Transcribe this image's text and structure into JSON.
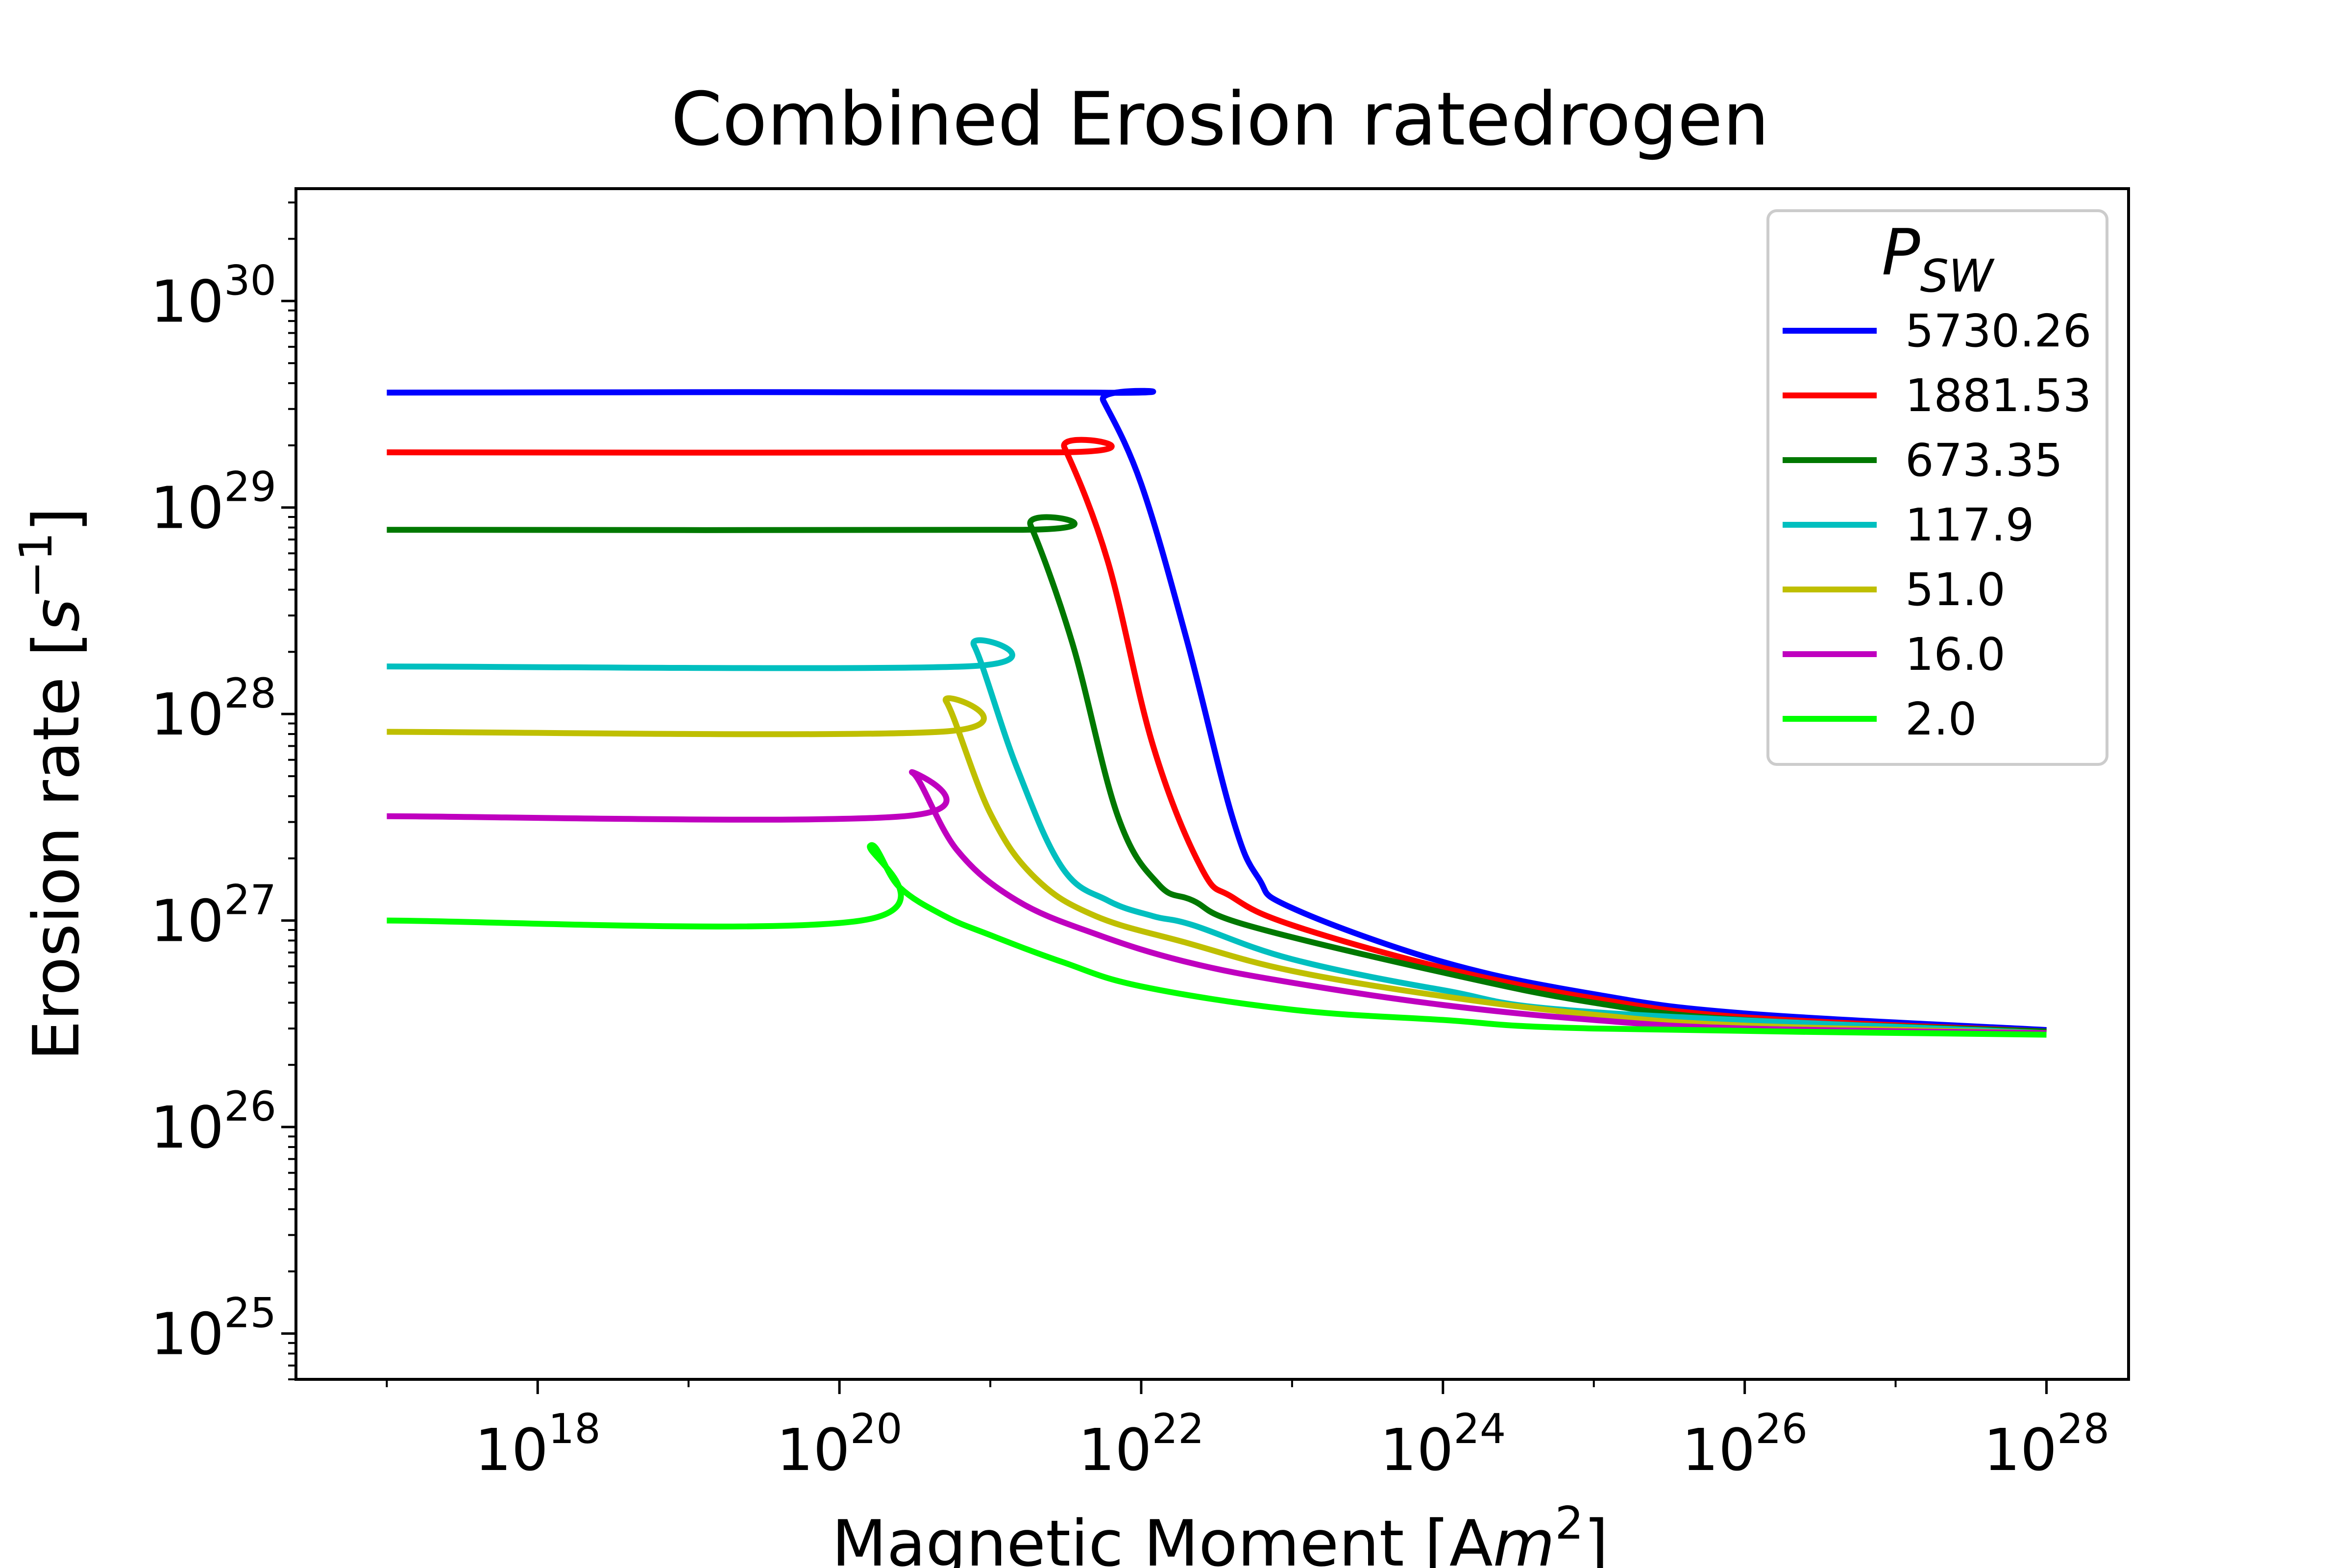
{
  "chart_data": {
    "type": "line",
    "title": "Combined Erosion ratedrogen",
    "xlabel": "Magnetic Moment [A",
    "xlabel_m": "m",
    "xlabel_exp": "2",
    "xlabel_end": "]",
    "ylabel": "Erosion rate [",
    "ylabel_s": "s",
    "ylabel_exp": "−1",
    "ylabel_end": "]",
    "xscale": "log",
    "yscale": "log",
    "xlim": [
      2.5e+16,
      3.5e+28
    ],
    "ylim": [
      6e+24,
      3.5e+30
    ],
    "x_ticks": [
      {
        "base": "10",
        "exp": "18",
        "value": 1e+18
      },
      {
        "base": "10",
        "exp": "20",
        "value": 1e+20
      },
      {
        "base": "10",
        "exp": "22",
        "value": 1e+22
      },
      {
        "base": "10",
        "exp": "24",
        "value": 1e+24
      },
      {
        "base": "10",
        "exp": "26",
        "value": 1e+26
      },
      {
        "base": "10",
        "exp": "28",
        "value": 1e+28
      }
    ],
    "y_ticks": [
      {
        "base": "10",
        "exp": "25",
        "value": 1e+25
      },
      {
        "base": "10",
        "exp": "26",
        "value": 1e+26
      },
      {
        "base": "10",
        "exp": "27",
        "value": 1e+27
      },
      {
        "base": "10",
        "exp": "28",
        "value": 1e+28
      },
      {
        "base": "10",
        "exp": "29",
        "value": 1e+29
      },
      {
        "base": "10",
        "exp": "30",
        "value": 1e+30
      }
    ],
    "grid": false,
    "legend": {
      "title_base": "P",
      "title_sub": "SW",
      "placement": "top-right"
    },
    "series": [
      {
        "name": "5730.26",
        "color": "#0000ff",
        "x": [
          1e+17,
          5e+21,
          5.6e+21,
          1e+22,
          2e+22,
          4e+22,
          6e+22,
          1e+23,
          1e+24,
          1e+25,
          1e+26,
          1e+28
        ],
        "y": [
          3.6e+29,
          3.6e+29,
          3.3e+29,
          1.3e+29,
          2.3e+28,
          3.2e+27,
          1.6e+27,
          1.15e+27,
          6.3e+26,
          4.4e+26,
          3.55e+26,
          2.95e+26
        ]
      },
      {
        "name": "1881.53",
        "color": "#ff0000",
        "x": [
          1e+17,
          2.8e+21,
          3.1e+21,
          6e+21,
          1.2e+22,
          2.5e+22,
          4e+22,
          1e+23,
          1e+24,
          1e+25,
          1e+26,
          1e+28
        ],
        "y": [
          1.85e+29,
          1.85e+29,
          1.95e+29,
          5.5e+28,
          7e+27,
          1.8e+27,
          1.3e+27,
          9.5e+26,
          5.9e+26,
          4.2e+26,
          3.4e+26,
          2.9e+26
        ]
      },
      {
        "name": "673.35",
        "color": "#007800",
        "x": [
          1e+17,
          1.65e+21,
          1.85e+21,
          3.5e+21,
          7e+21,
          1.3e+22,
          2.2e+22,
          5e+22,
          1e+24,
          1e+25,
          1e+26,
          1e+28
        ],
        "y": [
          7.8e+28,
          7.8e+28,
          8.2e+28,
          2.2e+28,
          3.2e+27,
          1.5e+27,
          1.25e+27,
          9.5e+26,
          5.6e+26,
          4e+26,
          3.3e+26,
          2.9e+26
        ]
      },
      {
        "name": "117.9",
        "color": "#00bfbf",
        "x": [
          1e+17,
          6.8e+20,
          7.8e+20,
          1.5e+21,
          3e+21,
          6e+21,
          1.2e+22,
          2.2e+22,
          1e+23,
          1e+24,
          1e+25,
          1e+28
        ],
        "y": [
          1.7e+28,
          1.7e+28,
          2.15e+28,
          5.5e+27,
          1.8e+27,
          1.25e+27,
          1.05e+27,
          9.5e+26,
          6.5e+26,
          4.6e+26,
          3.6e+26,
          2.85e+26
        ]
      },
      {
        "name": "51.0",
        "color": "#bfbf00",
        "x": [
          1e+17,
          4.6e+20,
          5.1e+20,
          1e+21,
          2e+21,
          5e+21,
          2e+22,
          1e+23,
          1e+24,
          1e+25,
          1e+26,
          1e+28
        ],
        "y": [
          8.2e+27,
          8.2e+27,
          1.15e+28,
          3.3e+27,
          1.6e+27,
          1.05e+27,
          7.8e+26,
          5.7e+26,
          4.3e+26,
          3.5e+26,
          3.1e+26,
          2.85e+26
        ]
      },
      {
        "name": "16.0",
        "color": "#bf00bf",
        "x": [
          1e+17,
          2.7e+20,
          3.05e+20,
          6e+20,
          1.5e+21,
          5e+21,
          2e+22,
          1e+23,
          1e+24,
          1e+25,
          1e+26,
          1e+28
        ],
        "y": [
          3.2e+27,
          3.2e+27,
          5.2e+27,
          2.2e+27,
          1.25e+27,
          8.6e+26,
          6.3e+26,
          5e+26,
          3.9e+26,
          3.3e+26,
          3e+26,
          2.85e+26
        ]
      },
      {
        "name": "2.0",
        "color": "#00ff00",
        "x": [
          1e+17,
          1.4e+20,
          1.6e+20,
          2.5e+20,
          5e+20,
          1e+21,
          3e+21,
          1e+22,
          1e+23,
          1e+24,
          1e+25,
          1e+28
        ],
        "y": [
          1e+27,
          1e+27,
          2.3e+27,
          1.45e+27,
          1.05e+27,
          8.5e+26,
          6.3e+26,
          4.8e+26,
          3.7e+26,
          3.3e+26,
          3e+26,
          2.8e+26
        ]
      }
    ]
  }
}
